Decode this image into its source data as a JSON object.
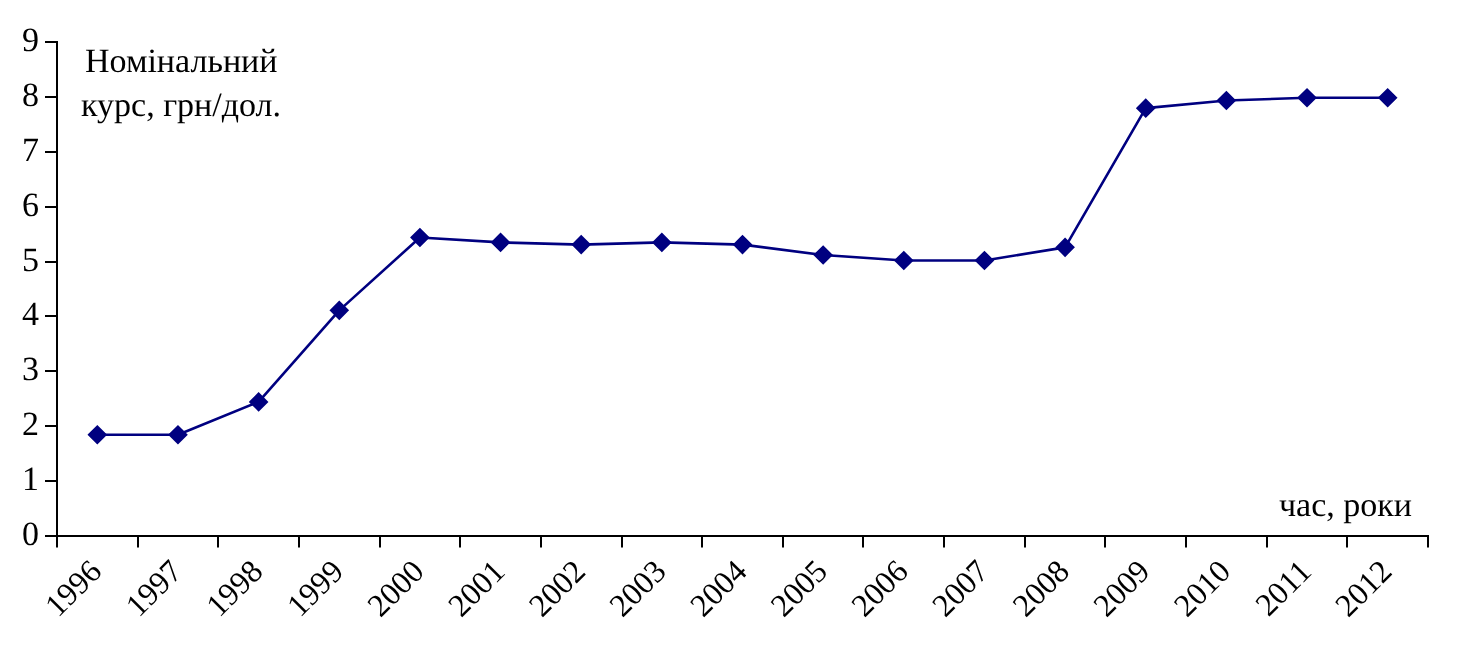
{
  "chart_data": {
    "type": "line",
    "ylabel": "Номінальний курс, грн/дол.",
    "xlabel": "час, роки",
    "categories": [
      "1996",
      "1997",
      "1998",
      "1999",
      "2000",
      "2001",
      "2002",
      "2003",
      "2004",
      "2005",
      "2006",
      "2007",
      "2008",
      "2009",
      "2010",
      "2011",
      "2012"
    ],
    "series": [
      {
        "color": "#000080",
        "values": [
          1.84,
          1.84,
          2.44,
          4.11,
          5.44,
          5.35,
          5.31,
          5.35,
          5.31,
          5.12,
          5.02,
          5.02,
          5.26,
          7.8,
          7.94,
          7.99,
          7.99
        ]
      }
    ],
    "ylim": [
      0,
      9
    ],
    "yticks": [
      0,
      1,
      2,
      3,
      4,
      5,
      6,
      7,
      8,
      9
    ],
    "grid": false,
    "legend": false,
    "marker": "diamond",
    "line_style": "solid"
  }
}
